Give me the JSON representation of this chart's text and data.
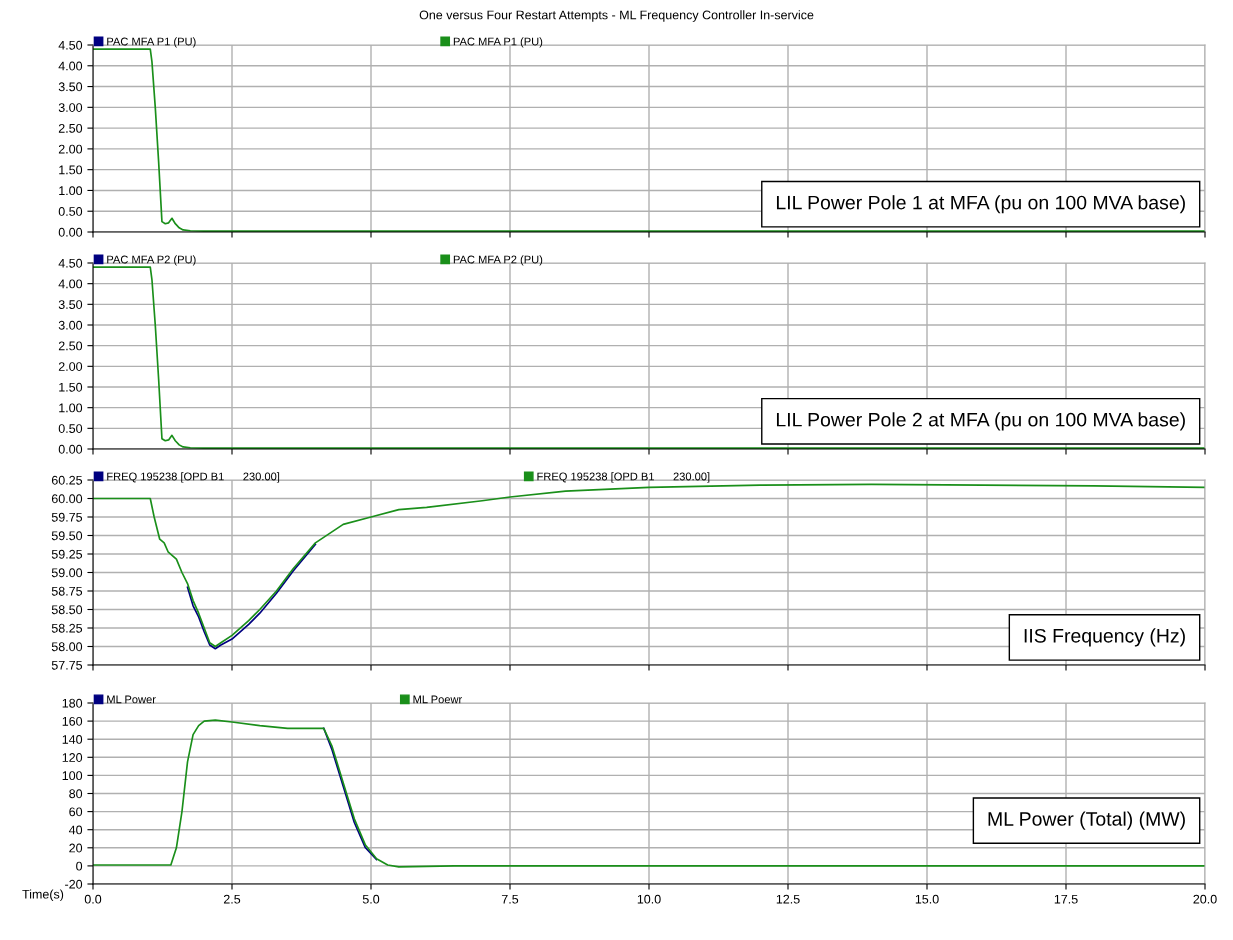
{
  "chart_data": [
    {
      "type": "line",
      "title": "One versus Four Restart Attempts - ML Frequency Controller In-service",
      "x": [
        0,
        1.03,
        1.06,
        1.12,
        1.18,
        1.24,
        1.3,
        1.36,
        1.42,
        1.48,
        1.55,
        1.62,
        1.75,
        2.0,
        20
      ],
      "series": [
        {
          "name": "PAC MFA P1 (PU)",
          "color": "#000080",
          "values": [
            null,
            null,
            null,
            null,
            null,
            null,
            null,
            null,
            null,
            null,
            null,
            null,
            null,
            null,
            null
          ]
        },
        {
          "name": "PAC MFA P1 (PU)",
          "color": "#1a8f1a",
          "values": [
            4.4,
            4.4,
            4.1,
            3.0,
            1.7,
            0.25,
            0.2,
            0.22,
            0.33,
            0.2,
            0.1,
            0.05,
            0.03,
            0.02,
            0.02
          ]
        }
      ],
      "xlim": [
        0,
        20
      ],
      "xticks": [
        0,
        2.5,
        5,
        7.5,
        10,
        12.5,
        15,
        17.5,
        20
      ],
      "ylim": [
        0,
        4.5
      ],
      "yticks": [
        {
          "value": 0,
          "label": "0.00"
        },
        {
          "value": 0.5,
          "label": "0.50"
        },
        {
          "value": 1,
          "label": "1.00"
        },
        {
          "value": 1.5,
          "label": "1.50"
        },
        {
          "value": 2,
          "label": "2.00"
        },
        {
          "value": 2.5,
          "label": "2.50"
        },
        {
          "value": 3,
          "label": "3.00"
        },
        {
          "value": 3.5,
          "label": "3.50"
        },
        {
          "value": 4,
          "label": "4.00"
        },
        {
          "value": 4.5,
          "label": "4.50"
        }
      ],
      "tick_labels": "y",
      "grid": true,
      "legend": "top",
      "marker": "none",
      "line_style": "solid",
      "annotations": [
        "LIL Power Pole 1 at MFA (pu on 100 MVA base)"
      ]
    },
    {
      "type": "line",
      "x": [
        0,
        1.03,
        1.06,
        1.12,
        1.18,
        1.24,
        1.3,
        1.36,
        1.42,
        1.48,
        1.55,
        1.62,
        1.75,
        2.0,
        20
      ],
      "series": [
        {
          "name": "PAC MFA P2 (PU)",
          "color": "#000080",
          "values": [
            null,
            null,
            null,
            null,
            null,
            null,
            null,
            null,
            null,
            null,
            null,
            null,
            null,
            null,
            null
          ]
        },
        {
          "name": "PAC MFA P2 (PU)",
          "color": "#1a8f1a",
          "values": [
            4.4,
            4.4,
            4.1,
            3.0,
            1.7,
            0.25,
            0.2,
            0.22,
            0.33,
            0.2,
            0.1,
            0.05,
            0.03,
            0.02,
            0.02
          ]
        }
      ],
      "xlim": [
        0,
        20
      ],
      "xticks": [
        0,
        2.5,
        5,
        7.5,
        10,
        12.5,
        15,
        17.5,
        20
      ],
      "ylim": [
        0,
        4.5
      ],
      "yticks": [
        {
          "value": 0,
          "label": "0.00"
        },
        {
          "value": 0.5,
          "label": "0.50"
        },
        {
          "value": 1,
          "label": "1.00"
        },
        {
          "value": 1.5,
          "label": "1.50"
        },
        {
          "value": 2,
          "label": "2.00"
        },
        {
          "value": 2.5,
          "label": "2.50"
        },
        {
          "value": 3,
          "label": "3.00"
        },
        {
          "value": 3.5,
          "label": "3.50"
        },
        {
          "value": 4,
          "label": "4.00"
        },
        {
          "value": 4.5,
          "label": "4.50"
        }
      ],
      "tick_labels": "y",
      "grid": true,
      "legend": "top",
      "marker": "none",
      "line_style": "solid",
      "annotations": [
        "LIL Power Pole 2 at MFA (pu on 100 MVA base)"
      ]
    },
    {
      "type": "line",
      "x": [
        0,
        1.03,
        1.1,
        1.2,
        1.28,
        1.35,
        1.5,
        1.6,
        1.7,
        1.8,
        1.9,
        2.0,
        2.1,
        2.2,
        2.3,
        2.5,
        2.8,
        3.0,
        3.3,
        3.6,
        4.0,
        4.5,
        5.0,
        5.5,
        6.0,
        7.0,
        7.5,
        8.5,
        10,
        12,
        14,
        16,
        18,
        20
      ],
      "series": [
        {
          "name": "FREQ 195238 [OPD B1      230.00]",
          "color": "#000080",
          "values": [
            null,
            null,
            null,
            null,
            null,
            null,
            null,
            null,
            58.8,
            58.55,
            58.4,
            58.2,
            58.02,
            57.97,
            58.02,
            58.1,
            58.3,
            58.45,
            58.72,
            59.02,
            59.38,
            null,
            null,
            null,
            null,
            null,
            null,
            null,
            null,
            null,
            null,
            null,
            null,
            null
          ]
        },
        {
          "name": "FREQ 195238 [OPD B1      230.00]",
          "color": "#1a8f1a",
          "values": [
            60.0,
            60.0,
            59.75,
            59.45,
            59.4,
            59.28,
            59.18,
            59.0,
            58.85,
            58.62,
            58.45,
            58.25,
            58.05,
            58.0,
            58.05,
            58.15,
            58.35,
            58.5,
            58.75,
            59.05,
            59.4,
            59.65,
            59.75,
            59.85,
            59.88,
            59.97,
            60.02,
            60.1,
            60.15,
            60.18,
            60.19,
            60.18,
            60.17,
            60.15
          ]
        }
      ],
      "xlim": [
        0,
        20
      ],
      "xticks": [
        0,
        2.5,
        5,
        7.5,
        10,
        12.5,
        15,
        17.5,
        20
      ],
      "ylim": [
        57.75,
        60.25
      ],
      "yticks": [
        {
          "value": 57.75,
          "label": "57.75"
        },
        {
          "value": 58,
          "label": "58.00"
        },
        {
          "value": 58.25,
          "label": "58.25"
        },
        {
          "value": 58.5,
          "label": "58.50"
        },
        {
          "value": 58.75,
          "label": "58.75"
        },
        {
          "value": 59,
          "label": "59.00"
        },
        {
          "value": 59.25,
          "label": "59.25"
        },
        {
          "value": 59.5,
          "label": "59.50"
        },
        {
          "value": 59.75,
          "label": "59.75"
        },
        {
          "value": 60,
          "label": "60.00"
        },
        {
          "value": 60.25,
          "label": "60.25"
        }
      ],
      "tick_labels": "y",
      "grid": true,
      "legend": "top",
      "marker": "none",
      "line_style": "solid",
      "annotations": [
        "IIS Frequency (Hz)"
      ]
    },
    {
      "type": "line",
      "xlabel": "Time(s)",
      "x": [
        0,
        1.0,
        1.4,
        1.5,
        1.6,
        1.7,
        1.8,
        1.9,
        2.0,
        2.2,
        2.5,
        3.0,
        3.5,
        4.15,
        4.3,
        4.5,
        4.7,
        4.9,
        5.1,
        5.3,
        5.5,
        6.5,
        20
      ],
      "series": [
        {
          "name": "ML Power",
          "color": "#000080",
          "values": [
            null,
            null,
            null,
            null,
            null,
            null,
            null,
            null,
            null,
            null,
            null,
            null,
            null,
            152,
            128,
            88,
            48,
            20,
            7,
            null,
            null,
            null,
            null
          ]
        },
        {
          "name": "ML Poewr",
          "color": "#1a8f1a",
          "values": [
            1,
            1,
            1,
            20,
            60,
            115,
            145,
            155,
            160,
            161,
            159,
            155,
            152,
            152,
            132,
            92,
            52,
            23,
            8,
            1,
            -1,
            0,
            0
          ]
        }
      ],
      "xlim": [
        0,
        20
      ],
      "xticks": [
        {
          "value": 0,
          "label": "0.0"
        },
        {
          "value": 2.5,
          "label": "2.5"
        },
        {
          "value": 5,
          "label": "5.0"
        },
        {
          "value": 7.5,
          "label": "7.5"
        },
        {
          "value": 10,
          "label": "10.0"
        },
        {
          "value": 12.5,
          "label": "12.5"
        },
        {
          "value": 15,
          "label": "15.0"
        },
        {
          "value": 17.5,
          "label": "17.5"
        },
        {
          "value": 20,
          "label": "20.0"
        }
      ],
      "ylim": [
        -20,
        180
      ],
      "yticks": [
        -20,
        0,
        20,
        40,
        60,
        80,
        100,
        120,
        140,
        160,
        180
      ],
      "grid": true,
      "legend": "top",
      "marker": "none",
      "line_style": "solid",
      "annotations": [
        "ML Power (Total) (MW)"
      ]
    }
  ]
}
